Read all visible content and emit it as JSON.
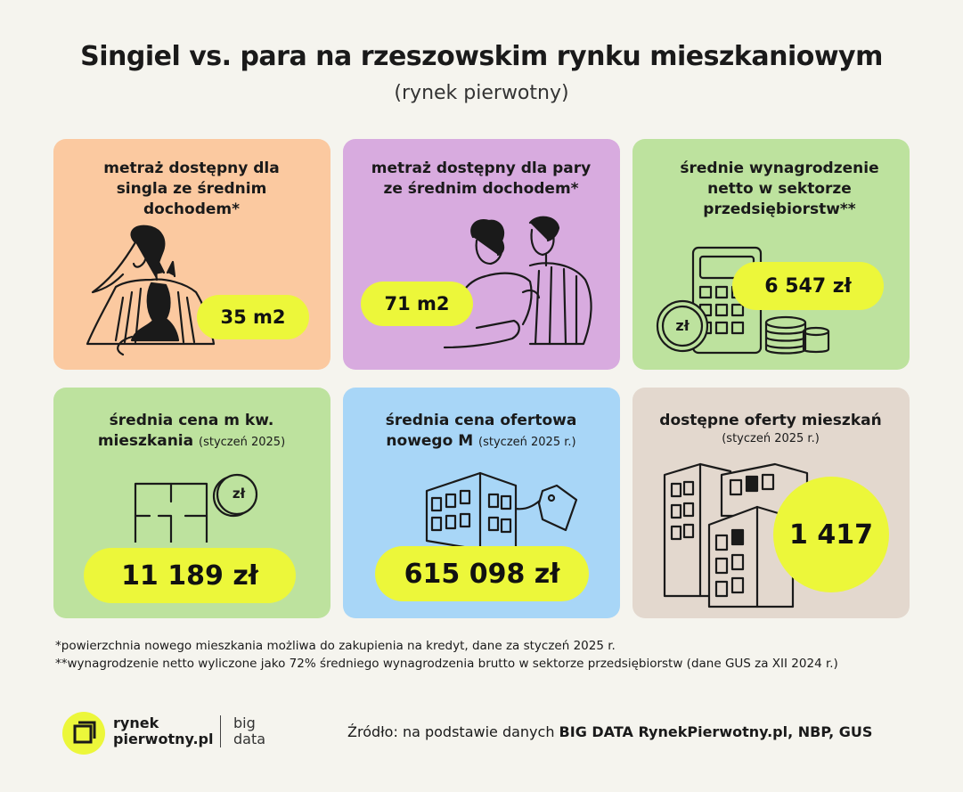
{
  "title": "Singiel vs. para na rzeszowskim rynku mieszkaniowym",
  "subtitle": "(rynek pierwotny)",
  "colors": {
    "accent": "#ecf73a",
    "peach": "#fbc9a0",
    "lavender": "#d8abdf",
    "green": "#bde29e",
    "blue": "#a8d6f7",
    "beige": "#e3d8ce"
  },
  "cards": {
    "single": {
      "label": "metraż dostępny dla singla ze średnim dochodem*",
      "value": "35 m2",
      "icon": "woman-with-cat-icon"
    },
    "couple": {
      "label": "metraż dostępny dla pary ze średnim dochodem*",
      "value": "71 m2",
      "icon": "couple-icon"
    },
    "salary": {
      "label": "średnie wynagrodzenie netto w sektorze przedsiębiorstw**",
      "value": "6 547 zł",
      "icon": "calculator-coins-icon",
      "coin_symbol": "zł"
    },
    "sqm_price": {
      "label_main": "średnia cena m kw. mieszkania",
      "label_note": "(styczeń 2025)",
      "value": "11 189 zł",
      "icon": "floorplan-coin-icon",
      "coin_symbol": "zł"
    },
    "offer_price": {
      "label_main": "średnia cena ofertowa nowego M",
      "label_note": "(styczeń 2025 r.)",
      "value": "615 098 zł",
      "icon": "building-price-tag-icon"
    },
    "offers": {
      "label_main": "dostępne oferty mieszkań",
      "label_note": "(styczeń 2025 r.)",
      "value": "1 417",
      "icon": "buildings-icon"
    }
  },
  "footnotes": [
    "*powierzchnia nowego mieszkania możliwa do zakupienia na kredyt, dane za styczeń 2025 r.",
    "**wynagrodzenie netto wyliczone jako 72% średniego wynagrodzenia brutto w sektorze przedsiębiorstw (dane GUS za XII 2024 r.)"
  ],
  "logo": {
    "line1": "rynek",
    "line2": "pierwotny.pl",
    "big1": "big",
    "big2": "data"
  },
  "source": {
    "prefix": "Źródło: na podstawie danych ",
    "bold": "BIG DATA RynekPierwotny.pl, NBP, GUS"
  }
}
